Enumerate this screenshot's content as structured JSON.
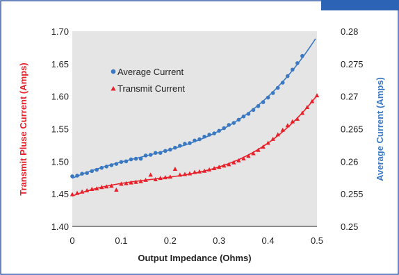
{
  "colors": {
    "series_blue": "#3a78c2",
    "series_red": "#e8202a",
    "plot_bg": "#e5e5e5",
    "frame_border": "#3a5fa8",
    "corner_tab": "#2d63b5"
  },
  "chart_data": {
    "type": "scatter",
    "title": "",
    "xlabel": "Output Impedance (Ohms)",
    "ylabel_left": "Transmit Pluse Current (Amps)",
    "ylabel_right": "Average Current (Amps)",
    "xlim": [
      0,
      0.5
    ],
    "ylim_left": [
      1.4,
      1.7
    ],
    "ylim_right": [
      0.25,
      0.28
    ],
    "x_ticks": [
      "0",
      "0.1",
      "0.2",
      "0.3",
      "0.4",
      "0.5"
    ],
    "y_left_ticks": [
      "1.40",
      "1.45",
      "1.50",
      "1.55",
      "1.60",
      "1.65",
      "1.70"
    ],
    "y_right_ticks": [
      "0.25",
      "0.255",
      "0.26",
      "0.265",
      "0.27",
      "0.275",
      "0.28"
    ],
    "grid": false,
    "legend_position": "upper-left",
    "series": [
      {
        "name": "Average Current",
        "axis": "right",
        "marker": "circle",
        "color": "#3a78c2",
        "fit_line": true,
        "x": [
          0,
          0.01,
          0.02,
          0.03,
          0.04,
          0.05,
          0.06,
          0.07,
          0.08,
          0.09,
          0.1,
          0.11,
          0.12,
          0.13,
          0.14,
          0.15,
          0.16,
          0.17,
          0.18,
          0.19,
          0.2,
          0.21,
          0.22,
          0.23,
          0.24,
          0.25,
          0.26,
          0.27,
          0.28,
          0.29,
          0.3,
          0.31,
          0.32,
          0.33,
          0.34,
          0.35,
          0.36,
          0.37,
          0.38,
          0.39,
          0.4,
          0.41,
          0.42,
          0.43,
          0.44,
          0.45,
          0.46,
          0.47
        ],
        "y": [
          0.2577,
          0.2578,
          0.2581,
          0.2582,
          0.2585,
          0.2587,
          0.259,
          0.2592,
          0.2594,
          0.2596,
          0.2599,
          0.26,
          0.2603,
          0.2604,
          0.2604,
          0.2609,
          0.261,
          0.2613,
          0.2613,
          0.2616,
          0.2618,
          0.2621,
          0.2624,
          0.2627,
          0.2628,
          0.2632,
          0.2634,
          0.2638,
          0.2641,
          0.2643,
          0.2647,
          0.2651,
          0.2656,
          0.2659,
          0.2664,
          0.2669,
          0.2673,
          0.2679,
          0.2685,
          0.2691,
          0.2698,
          0.2705,
          0.2713,
          0.2721,
          0.2731,
          0.2741,
          0.2751,
          0.2762
        ]
      },
      {
        "name": "Transmit Current",
        "axis": "left",
        "marker": "triangle",
        "color": "#e8202a",
        "fit_line": true,
        "x": [
          0,
          0.01,
          0.02,
          0.03,
          0.04,
          0.05,
          0.06,
          0.07,
          0.08,
          0.09,
          0.1,
          0.11,
          0.12,
          0.13,
          0.14,
          0.15,
          0.16,
          0.17,
          0.18,
          0.19,
          0.2,
          0.21,
          0.22,
          0.23,
          0.24,
          0.25,
          0.26,
          0.27,
          0.28,
          0.29,
          0.3,
          0.31,
          0.32,
          0.33,
          0.34,
          0.35,
          0.36,
          0.37,
          0.38,
          0.39,
          0.4,
          0.41,
          0.42,
          0.43,
          0.44,
          0.45,
          0.46,
          0.47,
          0.48,
          0.49,
          0.5
        ],
        "y": [
          1.449,
          1.451,
          1.453,
          1.455,
          1.457,
          1.458,
          1.46,
          1.461,
          1.462,
          1.456,
          1.465,
          1.466,
          1.467,
          1.468,
          1.469,
          1.471,
          1.479,
          1.472,
          1.474,
          1.475,
          1.476,
          1.488,
          1.479,
          1.48,
          1.481,
          1.483,
          1.484,
          1.485,
          1.487,
          1.489,
          1.491,
          1.493,
          1.495,
          1.498,
          1.501,
          1.504,
          1.508,
          1.512,
          1.517,
          1.522,
          1.528,
          1.534,
          1.541,
          1.548,
          1.555,
          1.561,
          1.565,
          1.574,
          1.583,
          1.592,
          1.601
        ]
      }
    ]
  }
}
